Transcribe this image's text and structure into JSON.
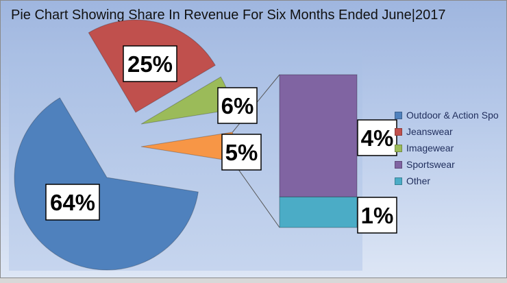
{
  "chart_data": {
    "type": "pie",
    "title": "Pie Chart Showing Share In Revenue For Six Months Ended June|2017",
    "series": [
      {
        "name": "Outdoor & Action Sports",
        "value": 64,
        "label": "64%",
        "color": "#4f81bd"
      },
      {
        "name": "Jeanswear",
        "value": 25,
        "label": "25%",
        "color": "#c0504d"
      },
      {
        "name": "Imagewear",
        "value": 6,
        "label": "6%",
        "color": "#9bbb59"
      },
      {
        "name": "Sportswear",
        "value": 4,
        "label": "4%",
        "color": "#8064a2"
      },
      {
        "name": "Other",
        "value": 1,
        "label": "1%",
        "color": "#4bacc6"
      }
    ],
    "secondary": {
      "type": "bar-of-pie",
      "parent_label": "5%",
      "parent_value": 5,
      "parent_color": "#f79646",
      "members": [
        "Sportswear",
        "Other"
      ]
    },
    "legend": {
      "position": "right",
      "entries": [
        "Outdoor & Action Spo",
        "Jeanswear",
        "Imagewear",
        "Sportswear",
        "Other"
      ]
    }
  }
}
